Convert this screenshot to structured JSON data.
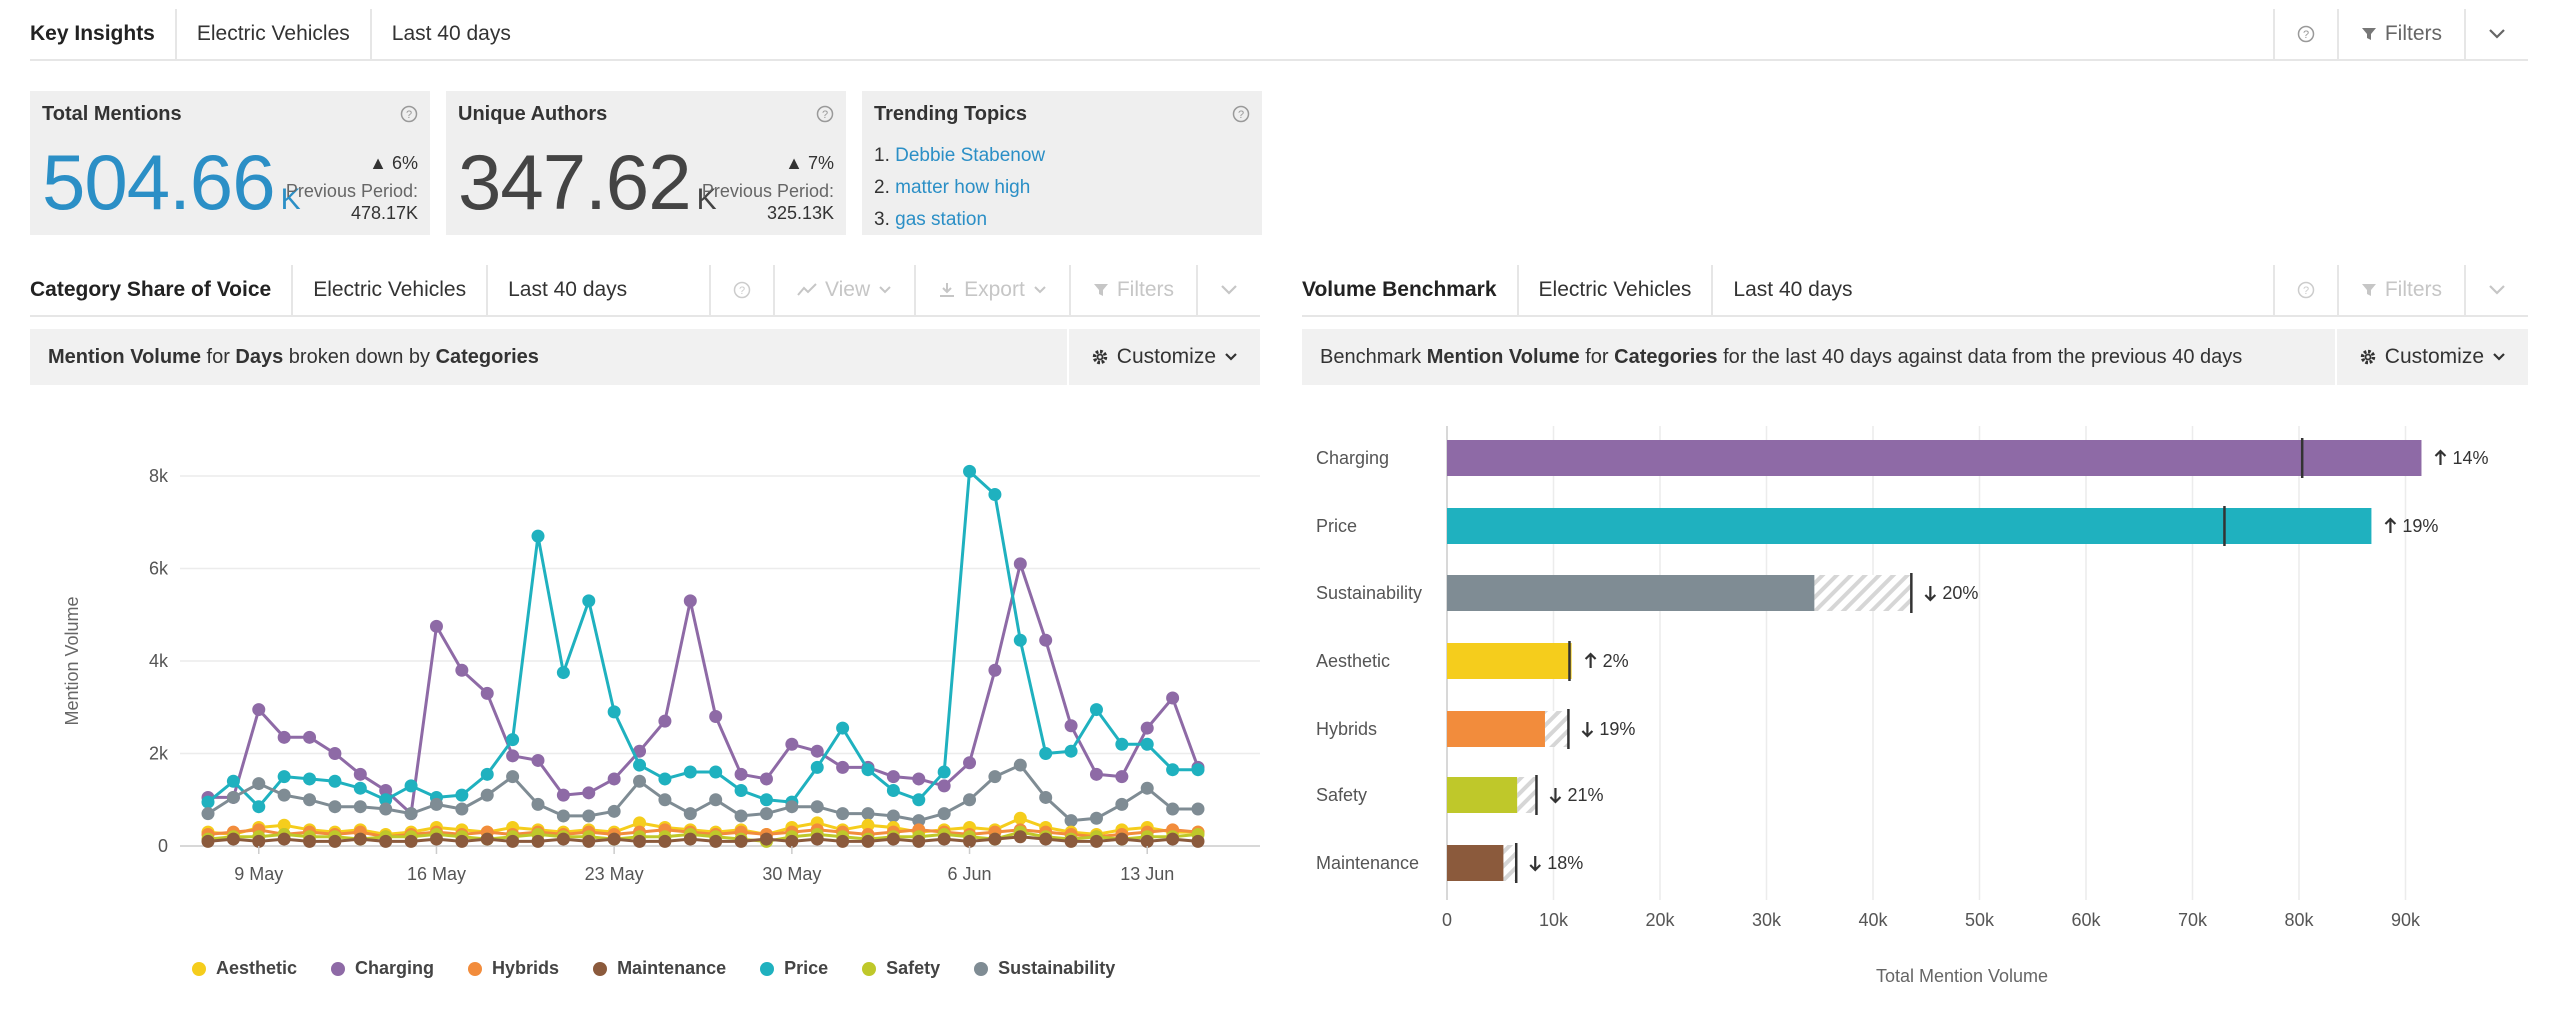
{
  "top": {
    "tabs": [
      "Key Insights",
      "Electric Vehicles",
      "Last 40 days"
    ],
    "filters_label": "Filters"
  },
  "kpi": {
    "total": {
      "title": "Total Mentions",
      "value": "504.66",
      "unit": "K",
      "delta": "6%",
      "prev_label": "Previous Period:",
      "prev_value": "478.17K"
    },
    "authors": {
      "title": "Unique Authors",
      "value": "347.62",
      "unit": "K",
      "delta": "7%",
      "prev_label": "Previous Period:",
      "prev_value": "325.13K"
    },
    "trending": {
      "title": "Trending Topics",
      "items": [
        "Debbie Stabenow",
        "matter how high",
        "gas station"
      ]
    }
  },
  "left_panel": {
    "tabs": [
      "Category Share of Voice",
      "Electric Vehicles",
      "Last 40 days"
    ],
    "view_label": "View",
    "export_label": "Export",
    "filters_label": "Filters",
    "subheader": {
      "p1": "Mention Volume",
      "p2": " for ",
      "p3": "Days",
      "p4": " broken down by ",
      "p5": "Categories"
    },
    "customize_label": "Customize"
  },
  "right_panel": {
    "tabs": [
      "Volume Benchmark",
      "Electric Vehicles",
      "Last 40 days"
    ],
    "filters_label": "Filters",
    "subheader": {
      "p1": "Benchmark ",
      "p2": "Mention Volume",
      "p3": " for ",
      "p4": "Categories",
      "p5": " for the last 40 days against data from the previous 40 days"
    },
    "customize_label": "Customize"
  },
  "colors": {
    "Aesthetic": "#f5cd1c",
    "Charging": "#8e6aa6",
    "Hybrids": "#f28c3c",
    "Maintenance": "#8b5a3c",
    "Price": "#1fb1bf",
    "Safety": "#bfc82a",
    "Sustainability": "#7f8c94"
  },
  "chart_data": [
    {
      "type": "line",
      "ylabel": "Mention Volume",
      "xlabel": "",
      "ylim": [
        0,
        8000
      ],
      "y_ticks": [
        "0",
        "2k",
        "4k",
        "6k",
        "8k"
      ],
      "x_tick_labels": [
        "9 May",
        "16 May",
        "23 May",
        "30 May",
        "6 Jun",
        "13 Jun"
      ],
      "x_tick_indices": [
        2,
        9,
        16,
        23,
        30,
        37
      ],
      "grid": true,
      "legend_position": "bottom",
      "series": [
        {
          "name": "Charging",
          "values": [
            1050,
            1050,
            2950,
            2350,
            2350,
            2000,
            1550,
            1200,
            700,
            4750,
            3800,
            3300,
            1950,
            1850,
            1100,
            1150,
            1450,
            2050,
            2700,
            5300,
            2800,
            1550,
            1450,
            2200,
            2050,
            1700,
            1700,
            1500,
            1450,
            1300,
            1800,
            3800,
            6100,
            4450,
            2600,
            1550,
            1500,
            2550,
            3200,
            1700
          ]
        },
        {
          "name": "Price",
          "values": [
            950,
            1400,
            850,
            1500,
            1450,
            1400,
            1250,
            1000,
            1300,
            1050,
            1100,
            1550,
            2300,
            6700,
            3750,
            5300,
            2900,
            1750,
            1450,
            1600,
            1600,
            1200,
            1000,
            950,
            1700,
            2550,
            1650,
            1200,
            1000,
            1600,
            8100,
            7600,
            4450,
            2000,
            2050,
            2950,
            2200,
            2200,
            1650,
            1650
          ]
        },
        {
          "name": "Sustainability",
          "values": [
            700,
            1050,
            1350,
            1100,
            1000,
            850,
            850,
            800,
            700,
            900,
            800,
            1100,
            1500,
            900,
            650,
            650,
            750,
            1400,
            1000,
            700,
            1000,
            650,
            700,
            850,
            850,
            700,
            700,
            650,
            550,
            700,
            1000,
            1500,
            1750,
            1050,
            550,
            600,
            900,
            1250,
            800,
            800
          ]
        },
        {
          "name": "Aesthetic",
          "values": [
            300,
            250,
            400,
            450,
            350,
            300,
            350,
            250,
            300,
            400,
            350,
            300,
            400,
            350,
            300,
            350,
            300,
            500,
            400,
            350,
            300,
            350,
            250,
            400,
            500,
            350,
            450,
            400,
            300,
            350,
            400,
            350,
            600,
            400,
            300,
            250,
            350,
            400,
            300,
            300
          ]
        },
        {
          "name": "Hybrids",
          "values": [
            250,
            300,
            350,
            250,
            300,
            250,
            300,
            200,
            250,
            300,
            250,
            300,
            250,
            300,
            250,
            300,
            250,
            300,
            350,
            300,
            250,
            300,
            250,
            300,
            350,
            300,
            250,
            300,
            350,
            300,
            250,
            300,
            350,
            300,
            250,
            200,
            250,
            300,
            350,
            300
          ]
        },
        {
          "name": "Safety",
          "values": [
            150,
            200,
            200,
            250,
            200,
            200,
            150,
            200,
            200,
            250,
            200,
            150,
            200,
            250,
            200,
            200,
            150,
            200,
            200,
            250,
            200,
            150,
            100,
            200,
            250,
            200,
            150,
            200,
            200,
            250,
            200,
            150,
            300,
            200,
            150,
            200,
            150,
            200,
            200,
            250
          ]
        },
        {
          "name": "Maintenance",
          "values": [
            100,
            150,
            100,
            150,
            100,
            100,
            150,
            100,
            100,
            150,
            100,
            150,
            100,
            100,
            150,
            100,
            150,
            100,
            100,
            150,
            100,
            100,
            150,
            100,
            150,
            100,
            100,
            150,
            100,
            150,
            100,
            150,
            200,
            150,
            100,
            100,
            150,
            100,
            150,
            100
          ]
        }
      ]
    },
    {
      "type": "bar",
      "orientation": "horizontal",
      "xlabel": "Total Mention Volume",
      "ylabel": "",
      "xlim": [
        0,
        95000
      ],
      "x_ticks": [
        "0",
        "10k",
        "20k",
        "30k",
        "40k",
        "50k",
        "60k",
        "70k",
        "80k",
        "90k"
      ],
      "grid": true,
      "categories": [
        "Charging",
        "Price",
        "Sustainability",
        "Aesthetic",
        "Hybrids",
        "Safety",
        "Maintenance"
      ],
      "values": [
        91500,
        86800,
        34500,
        11700,
        9200,
        6600,
        5300
      ],
      "previous_values": [
        80300,
        73000,
        43600,
        11500,
        11400,
        8400,
        6500
      ],
      "changes": [
        "14%",
        "19%",
        "20%",
        "2%",
        "19%",
        "21%",
        "18%"
      ],
      "change_direction": [
        "up",
        "up",
        "down",
        "up",
        "down",
        "down",
        "down"
      ]
    }
  ]
}
